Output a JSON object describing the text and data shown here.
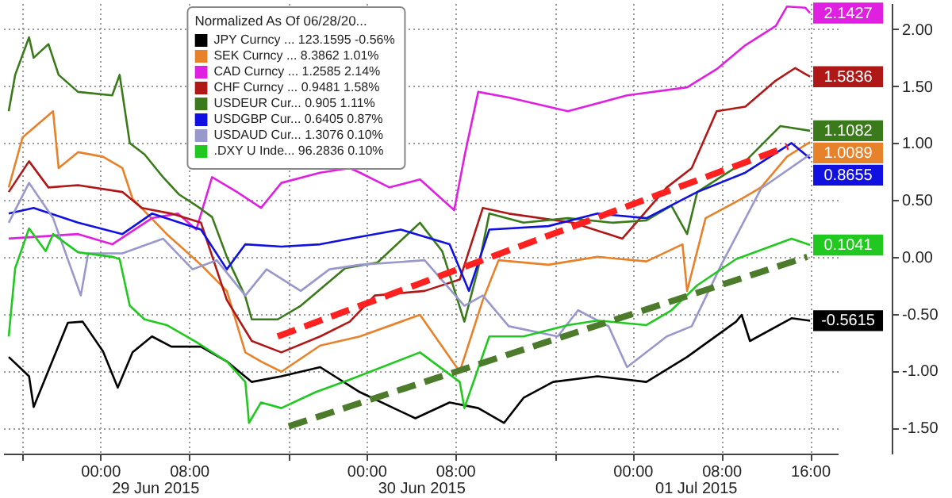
{
  "chart_data": {
    "type": "line",
    "legend_title": "Normalized As Of 06/28/20...",
    "legend": "top",
    "grid": true,
    "xlim": [
      "2015-06-28T15:15",
      "2015-07-01T18:30"
    ],
    "xticks": [
      {
        "value": "2015-06-28T17:00",
        "label": null
      },
      {
        "value": "2015-06-29T00:00",
        "label": "00:00"
      },
      {
        "value": "2015-06-29T08:00",
        "label": "08:00"
      },
      {
        "value": "2015-06-29T17:00",
        "label": null
      },
      {
        "value": "2015-06-30T00:00",
        "label": "00:00"
      },
      {
        "value": "2015-06-30T08:00",
        "label": "08:00"
      },
      {
        "value": "2015-06-30T17:00",
        "label": null
      },
      {
        "value": "2015-07-01T00:00",
        "label": "00:00"
      },
      {
        "value": "2015-07-01T08:00",
        "label": "08:00"
      },
      {
        "value": "2015-07-01T16:00",
        "label": "16:00"
      }
    ],
    "ylim": [
      -1.73,
      2.23
    ],
    "yticks": [
      {
        "value": -1.5,
        "label": "-1.50"
      },
      {
        "value": -1,
        "label": "-1.00"
      },
      {
        "value": -0.5,
        "label": "-0.50"
      },
      {
        "value": 0,
        "label": "0.00"
      },
      {
        "value": 0.5,
        "label": "0.50"
      },
      {
        "value": 1,
        "label": "1.00"
      },
      {
        "value": 1.5,
        "label": "1.50"
      },
      {
        "value": 2,
        "label": "2.00"
      }
    ],
    "annotations": [
      "29 Jun 2015",
      "30 Jun 2015",
      "01 Jul 2015"
    ],
    "series": [
      {
        "name": "JPY Curncy ... 123.1595 -0.56%",
        "color": "#000000",
        "x": [
          "2015-06-28T15:45",
          "2015-06-28T17:35",
          "2015-06-28T18:00",
          "2015-06-28T19:20",
          "2015-06-28T21:05",
          "2015-06-28T22:25",
          "2015-06-29T00:15",
          "2015-06-29T01:35",
          "2015-06-29T02:55",
          "2015-06-29T04:40",
          "2015-06-29T06:25",
          "2015-06-29T09:05",
          "2015-06-29T11:25",
          "2015-06-29T13:40",
          "2015-06-29T16:20",
          "2015-06-29T19:50",
          "2015-06-29T23:25",
          "2015-06-30T04:25",
          "2015-06-30T07:30",
          "2015-06-30T10:05",
          "2015-06-30T12:25",
          "2015-06-30T14:10",
          "2015-06-30T16:50",
          "2015-06-30T20:50",
          "2015-07-01T01:15",
          "2015-07-01T04:55",
          "2015-07-01T09:20",
          "2015-07-01T09:50",
          "2015-07-01T10:35",
          "2015-07-01T14:20",
          "2015-07-01T16:00"
        ],
        "values": [
          -0.88,
          -1.05,
          -1.32,
          -1.0,
          -0.58,
          -0.57,
          -0.83,
          -1.15,
          -0.84,
          -0.7,
          -0.79,
          -0.79,
          -0.92,
          -1.1,
          -1.05,
          -0.97,
          -1.19,
          -1.42,
          -1.28,
          -1.33,
          -1.46,
          -1.24,
          -1.1,
          -1.05,
          -1.1,
          -0.88,
          -0.57,
          -0.51,
          -0.74,
          -0.54,
          -0.5615
        ],
        "value_labels": [
          null,
          null,
          null,
          null,
          null,
          null,
          null,
          null,
          null,
          null,
          null,
          null,
          null,
          null,
          null,
          null,
          null,
          null,
          null,
          null,
          null,
          null,
          null,
          null,
          null,
          null,
          null,
          null,
          null,
          null,
          "-0.5615"
        ]
      },
      {
        "name": "SEK Curncy ... 8.3862 1.01%",
        "color": "#e8822a",
        "x": [
          "2015-06-28T15:45",
          "2015-06-28T17:00",
          "2015-06-28T19:45",
          "2015-06-28T20:15",
          "2015-06-28T22:00",
          "2015-06-29T00:15",
          "2015-06-29T02:00",
          "2015-06-29T02:55",
          "2015-06-29T06:00",
          "2015-06-29T09:05",
          "2015-06-29T11:25",
          "2015-06-29T13:05",
          "2015-06-29T14:30",
          "2015-06-29T16:20",
          "2015-06-29T19:50",
          "2015-06-29T23:25",
          "2015-06-30T04:50",
          "2015-06-30T08:25",
          "2015-06-30T10:30",
          "2015-06-30T11:55",
          "2015-06-30T16:25",
          "2015-06-30T20:50",
          "2015-07-01T01:15",
          "2015-07-01T04:30",
          "2015-07-01T04:55",
          "2015-07-01T06:35",
          "2015-07-01T09:50",
          "2015-07-01T11:35",
          "2015-07-01T13:55",
          "2015-07-01T16:00"
        ],
        "values": [
          0.61,
          1.05,
          1.28,
          0.78,
          0.92,
          0.88,
          0.78,
          0.51,
          0.2,
          -0.07,
          -0.3,
          -0.84,
          -0.92,
          -1.01,
          -0.78,
          -0.7,
          -0.51,
          -1.01,
          -0.38,
          -0.03,
          -0.07,
          0.0,
          -0.04,
          0.11,
          -0.3,
          0.34,
          0.51,
          0.61,
          0.88,
          1.0089
        ],
        "value_labels": [
          null,
          null,
          null,
          null,
          null,
          null,
          null,
          null,
          null,
          null,
          null,
          null,
          null,
          null,
          null,
          null,
          null,
          null,
          null,
          null,
          null,
          null,
          null,
          null,
          null,
          null,
          null,
          null,
          null,
          "1.0089"
        ]
      },
      {
        "name": "CAD Curncy ... 1.2585 2.14%",
        "color": "#e020e0",
        "x": [
          "2015-06-28T15:45",
          "2015-06-28T22:00",
          "2015-06-29T01:05",
          "2015-06-29T04:40",
          "2015-06-29T07:00",
          "2015-06-29T08:40",
          "2015-06-29T10:05",
          "2015-06-29T12:20",
          "2015-06-29T14:30",
          "2015-06-29T16:20",
          "2015-06-29T19:50",
          "2015-06-29T22:30",
          "2015-06-29T23:25",
          "2015-06-30T02:05",
          "2015-06-30T04:50",
          "2015-06-30T07:55",
          "2015-06-30T08:50",
          "2015-06-30T10:05",
          "2015-06-30T12:50",
          "2015-06-30T18:10",
          "2015-06-30T23:30",
          "2015-07-01T04:55",
          "2015-07-01T07:35",
          "2015-07-01T10:10",
          "2015-07-01T12:55",
          "2015-07-01T13:55",
          "2015-07-01T15:35",
          "2015-07-01T16:00"
        ],
        "values": [
          0.16,
          0.2,
          0.11,
          0.34,
          0.38,
          0.24,
          0.7,
          0.57,
          0.43,
          0.65,
          0.74,
          0.78,
          0.74,
          0.61,
          0.68,
          0.41,
          0.88,
          1.45,
          1.4,
          1.28,
          1.42,
          1.49,
          1.65,
          1.86,
          2.03,
          2.2,
          2.19,
          2.1427
        ],
        "value_labels": [
          null,
          null,
          null,
          null,
          null,
          null,
          null,
          null,
          null,
          null,
          null,
          null,
          null,
          null,
          null,
          null,
          null,
          null,
          null,
          null,
          null,
          null,
          null,
          null,
          null,
          null,
          null,
          "2.1427"
        ]
      },
      {
        "name": "CHF Curncy ... 0.9481 1.58%",
        "color": "#b01818",
        "x": [
          "2015-06-28T15:45",
          "2015-06-28T17:35",
          "2015-06-28T19:20",
          "2015-06-28T22:00",
          "2015-06-29T02:00",
          "2015-06-29T03:45",
          "2015-06-29T06:25",
          "2015-06-29T09:05",
          "2015-06-29T11:25",
          "2015-06-29T13:40",
          "2015-06-29T16:20",
          "2015-06-29T19:50",
          "2015-06-29T22:30",
          "2015-06-30T00:45",
          "2015-06-30T05:15",
          "2015-06-30T08:25",
          "2015-06-30T10:30",
          "2015-06-30T12:50",
          "2015-06-30T18:35",
          "2015-06-30T23:05",
          "2015-07-01T03:05",
          "2015-07-01T05:20",
          "2015-07-01T07:35",
          "2015-07-01T10:10",
          "2015-07-01T12:55",
          "2015-07-01T14:40",
          "2015-07-01T16:00"
        ],
        "values": [
          0.57,
          0.84,
          0.61,
          0.63,
          0.57,
          0.43,
          0.38,
          0.3,
          -0.38,
          -0.74,
          -0.84,
          -0.7,
          -0.57,
          -0.34,
          -0.3,
          -0.2,
          0.43,
          0.38,
          0.3,
          0.16,
          0.61,
          0.78,
          1.28,
          1.32,
          1.55,
          1.66,
          1.5836
        ],
        "value_labels": [
          null,
          null,
          null,
          null,
          null,
          null,
          null,
          null,
          null,
          null,
          null,
          null,
          null,
          null,
          null,
          null,
          null,
          null,
          null,
          null,
          null,
          null,
          null,
          null,
          null,
          null,
          "1.5836"
        ]
      },
      {
        "name": "USDEUR Cur... 0.905 1.11%",
        "color": "#3a7a1a",
        "x": [
          "2015-06-28T15:45",
          "2015-06-28T16:20",
          "2015-06-28T17:35",
          "2015-06-28T18:00",
          "2015-06-28T19:20",
          "2015-06-28T20:15",
          "2015-06-28T22:00",
          "2015-06-29T01:05",
          "2015-06-29T01:45",
          "2015-06-29T02:40",
          "2015-06-29T04:00",
          "2015-06-29T05:40",
          "2015-06-29T07:05",
          "2015-06-29T08:40",
          "2015-06-29T10:05",
          "2015-06-29T11:25",
          "2015-06-29T13:05",
          "2015-06-29T13:40",
          "2015-06-29T16:00",
          "2015-06-29T18:05",
          "2015-06-29T22:05",
          "2015-06-30T01:00",
          "2015-06-30T04:50",
          "2015-06-30T06:50",
          "2015-06-30T08:50",
          "2015-06-30T10:05",
          "2015-06-30T11:05",
          "2015-06-30T14:10",
          "2015-06-30T18:10",
          "2015-06-30T22:10",
          "2015-07-01T01:15",
          "2015-07-01T03:30",
          "2015-07-01T04:55",
          "2015-07-01T05:50",
          "2015-07-01T10:10",
          "2015-07-01T13:20",
          "2015-07-01T16:00"
        ],
        "values": [
          1.28,
          1.6,
          1.93,
          1.75,
          1.87,
          1.6,
          1.45,
          1.42,
          1.6,
          1.0,
          0.9,
          0.7,
          0.55,
          0.45,
          0.35,
          0.0,
          -0.35,
          -0.55,
          -0.55,
          -0.43,
          -0.1,
          -0.05,
          0.3,
          0.05,
          -0.57,
          -0.1,
          0.38,
          0.3,
          0.34,
          0.3,
          0.32,
          0.45,
          0.2,
          0.57,
          0.84,
          1.15,
          1.1082
        ],
        "value_labels": [
          null,
          null,
          null,
          null,
          null,
          null,
          null,
          null,
          null,
          null,
          null,
          null,
          null,
          null,
          null,
          null,
          null,
          null,
          null,
          null,
          null,
          null,
          null,
          null,
          null,
          null,
          null,
          null,
          null,
          null,
          null,
          null,
          null,
          null,
          null,
          null,
          "1.1082"
        ]
      },
      {
        "name": "USDGBP Cur... 0.6405 0.87%",
        "color": "#1010e0",
        "x": [
          "2015-06-28T15:45",
          "2015-06-28T18:00",
          "2015-06-28T22:00",
          "2015-06-29T02:00",
          "2015-06-29T04:40",
          "2015-06-29T09:05",
          "2015-06-29T11:25",
          "2015-06-29T13:05",
          "2015-06-29T16:20",
          "2015-06-29T19:50",
          "2015-06-29T22:30",
          "2015-06-30T03:05",
          "2015-06-30T07:30",
          "2015-06-30T09:15",
          "2015-06-30T11:05",
          "2015-06-30T16:25",
          "2015-06-30T20:50",
          "2015-07-01T01:15",
          "2015-07-01T05:50",
          "2015-07-01T10:10",
          "2015-07-01T14:20",
          "2015-07-01T16:00"
        ],
        "values": [
          0.38,
          0.43,
          0.3,
          0.2,
          0.38,
          0.24,
          -0.11,
          0.11,
          0.09,
          0.11,
          0.16,
          0.24,
          0.11,
          -0.3,
          0.24,
          0.27,
          0.38,
          0.34,
          0.57,
          0.74,
          1.0,
          0.8655
        ],
        "value_labels": [
          null,
          null,
          null,
          null,
          null,
          null,
          null,
          null,
          null,
          null,
          null,
          null,
          null,
          null,
          null,
          null,
          null,
          null,
          null,
          null,
          null,
          "0.8655"
        ]
      },
      {
        "name": "USDAUD Cur... 1.3076 0.10%",
        "color": "#9898cc",
        "x": [
          "2015-06-28T15:45",
          "2015-06-28T17:35",
          "2015-06-28T19:45",
          "2015-06-28T22:15",
          "2015-06-28T22:55",
          "2015-06-29T02:00",
          "2015-06-29T05:40",
          "2015-06-29T08:20",
          "2015-06-29T10:30",
          "2015-06-29T13:05",
          "2015-06-29T15:00",
          "2015-06-29T18:05",
          "2015-06-29T20:40",
          "2015-06-29T23:25",
          "2015-06-30T05:15",
          "2015-06-30T08:50",
          "2015-06-30T10:30",
          "2015-06-30T12:50",
          "2015-06-30T17:15",
          "2015-06-30T19:05",
          "2015-06-30T21:50",
          "2015-06-30T23:30",
          "2015-07-01T03:05",
          "2015-07-01T05:20",
          "2015-07-01T08:00",
          "2015-07-01T11:35",
          "2015-07-01T16:00"
        ],
        "values": [
          0.3,
          0.65,
          0.34,
          -0.34,
          0.03,
          0.03,
          0.16,
          -0.11,
          -0.03,
          -0.34,
          -0.11,
          -0.3,
          -0.11,
          -0.07,
          -0.03,
          -0.43,
          -0.34,
          -0.61,
          -0.7,
          -0.47,
          -0.61,
          -0.97,
          -0.7,
          -0.61,
          -0.07,
          0.6,
          0.9
        ]
      },
      {
        "name": ".DXY U Inde... 96.2836 0.10%",
        "color": "#20c820",
        "x": [
          "2015-06-28T15:45",
          "2015-06-28T16:20",
          "2015-06-28T17:35",
          "2015-06-28T19:05",
          "2015-06-28T19:45",
          "2015-06-28T22:00",
          "2015-06-29T01:05",
          "2015-06-29T01:45",
          "2015-06-29T02:40",
          "2015-06-29T04:00",
          "2015-06-29T06:00",
          "2015-06-29T08:40",
          "2015-06-29T11:25",
          "2015-06-29T13:05",
          "2015-06-29T13:25",
          "2015-06-29T14:30",
          "2015-06-29T16:20",
          "2015-06-29T19:25",
          "2015-06-29T22:30",
          "2015-06-30T04:50",
          "2015-06-30T08:25",
          "2015-06-30T08:50",
          "2015-06-30T11:05",
          "2015-06-30T14:10",
          "2015-06-30T18:10",
          "2015-06-30T20:50",
          "2015-07-01T01:15",
          "2015-07-01T03:30",
          "2015-07-01T05:50",
          "2015-07-01T09:20",
          "2015-07-01T14:20",
          "2015-07-01T16:00"
        ],
        "values": [
          -0.7,
          -0.1,
          0.25,
          0.05,
          0.2,
          0.04,
          0.0,
          -0.02,
          -0.43,
          -0.55,
          -0.6,
          -0.75,
          -0.92,
          -1.1,
          -1.46,
          -1.28,
          -1.33,
          -1.19,
          -1.08,
          -0.84,
          -1.1,
          -1.33,
          -0.7,
          -0.7,
          -0.6,
          -0.56,
          -0.6,
          -0.47,
          -0.25,
          -0.02,
          0.16,
          0.1041
        ],
        "value_labels": [
          null,
          null,
          null,
          null,
          null,
          null,
          null,
          null,
          null,
          null,
          null,
          null,
          null,
          null,
          null,
          null,
          null,
          null,
          null,
          null,
          null,
          null,
          null,
          null,
          null,
          null,
          null,
          null,
          null,
          null,
          null,
          "0.1041"
        ]
      },
      {
        "type": "line",
        "line_style": "dashed",
        "color": "#ff2020",
        "x": [
          "2015-06-29T16:00",
          "2015-07-01T14:00"
        ],
        "values": [
          -0.7,
          0.97
        ]
      },
      {
        "type": "line",
        "line_style": "dashed",
        "color": "#4b7b2b",
        "x": [
          "2015-06-29T17:00",
          "2015-07-01T15:45"
        ],
        "values": [
          -1.49,
          0.0
        ]
      }
    ]
  }
}
